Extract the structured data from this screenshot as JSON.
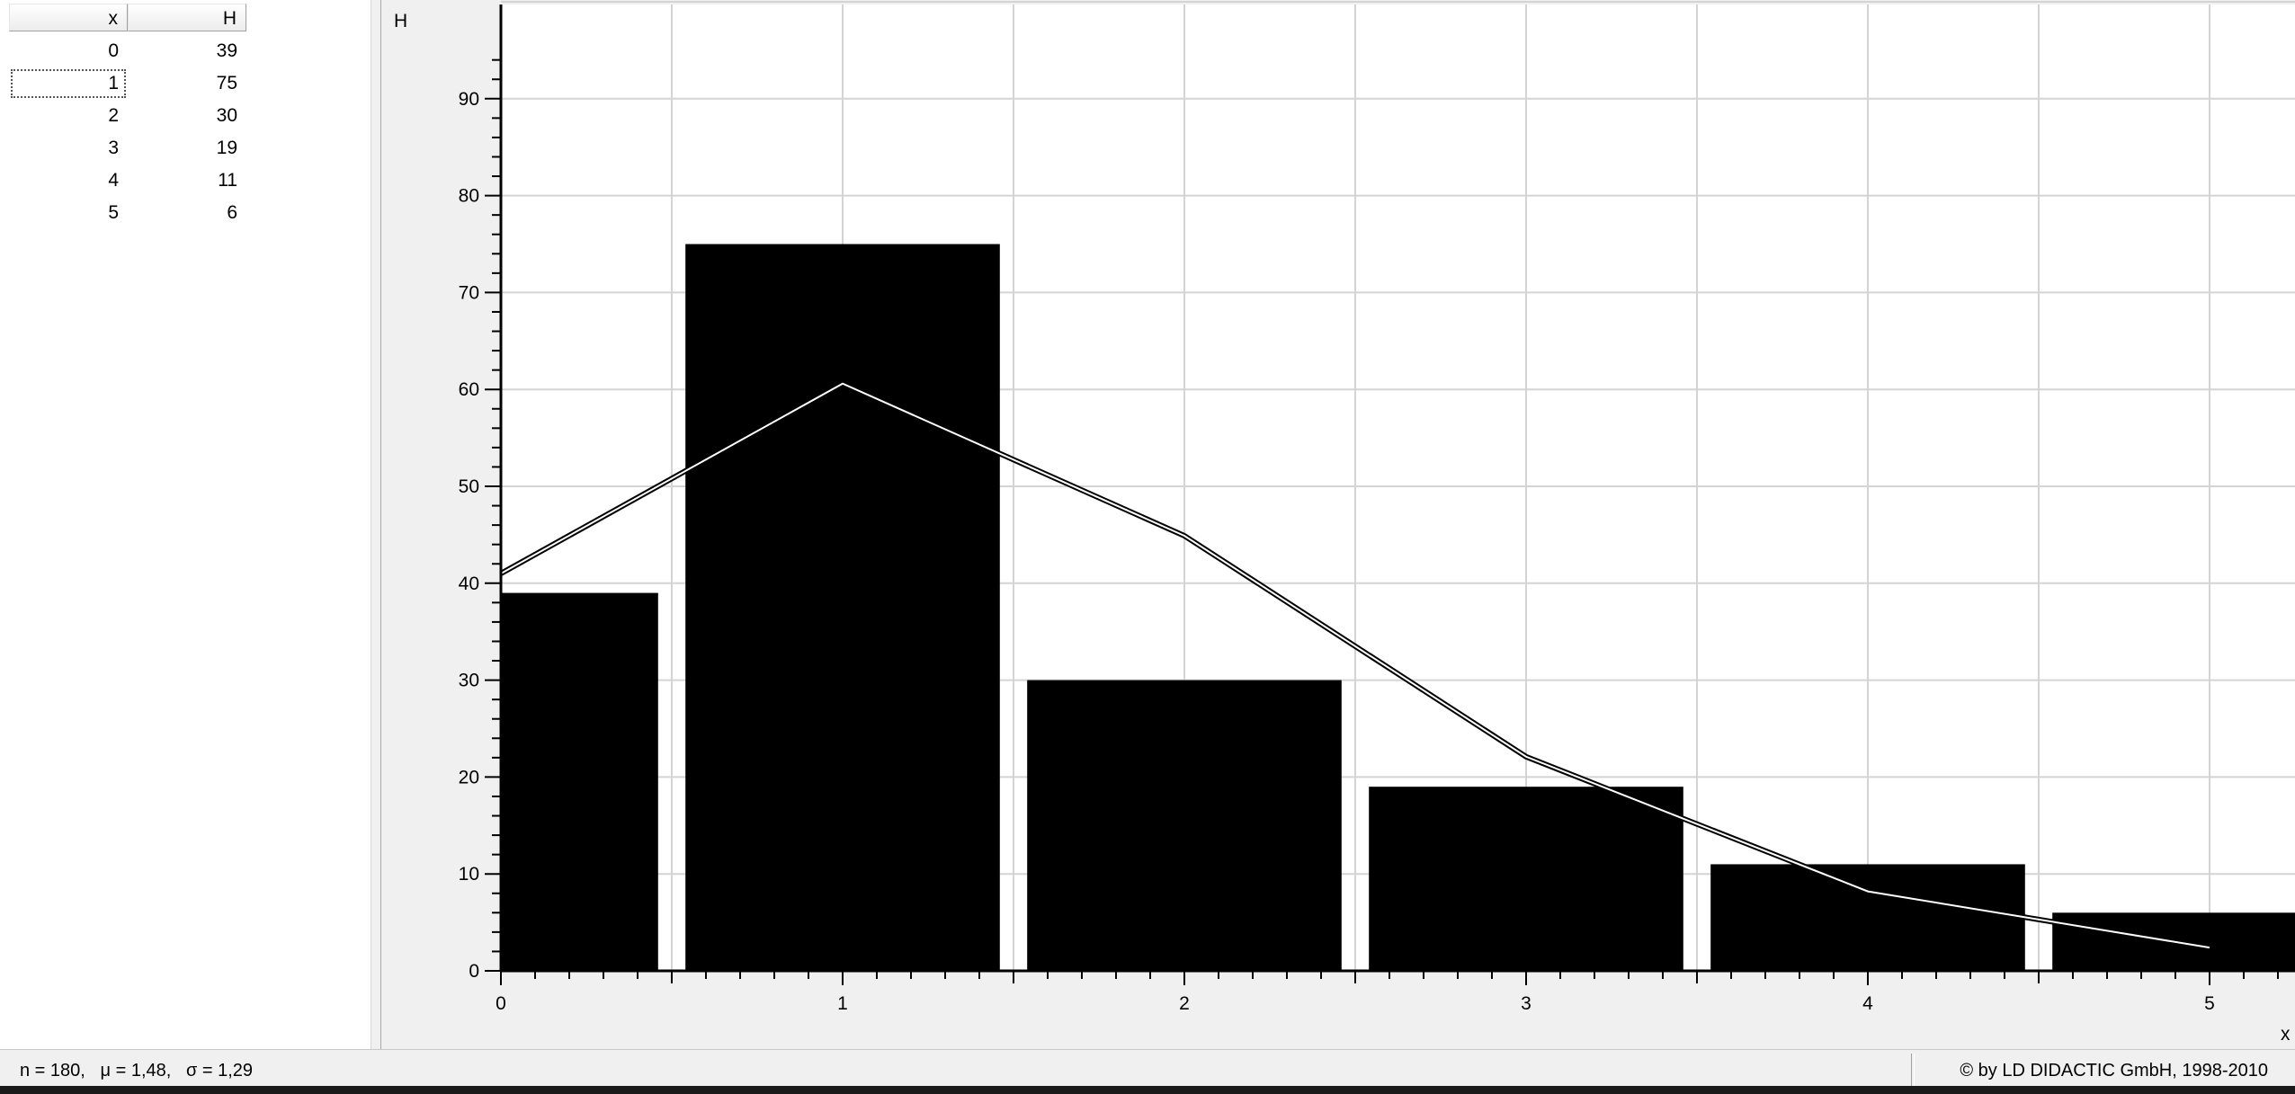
{
  "table": {
    "columns": [
      "x",
      "H"
    ],
    "rows": [
      {
        "x": "0",
        "H": "39"
      },
      {
        "x": "1",
        "H": "75"
      },
      {
        "x": "2",
        "H": "30"
      },
      {
        "x": "3",
        "H": "19"
      },
      {
        "x": "4",
        "H": "11"
      },
      {
        "x": "5",
        "H": "6"
      }
    ],
    "selected_row": 1
  },
  "status": {
    "stats": "n = 180,   μ = 1,48,   σ = 1,29",
    "copyright": "© by LD DIDACTIC GmbH, 1998-2010"
  },
  "chart_data": {
    "type": "bar",
    "xlabel": "x",
    "ylabel": "H",
    "categories": [
      0,
      1,
      2,
      3,
      4,
      5
    ],
    "values": [
      39,
      75,
      30,
      19,
      11,
      6
    ],
    "x_ticks": [
      0,
      1,
      2,
      3,
      4,
      5
    ],
    "y_ticks": [
      0,
      10,
      20,
      30,
      40,
      50,
      60,
      70,
      80,
      90
    ],
    "xlim": [
      0,
      5.25
    ],
    "ylim": [
      0,
      100
    ],
    "grid": true,
    "bar_color": "#000000",
    "curve": {
      "x": [
        0,
        1,
        2,
        3,
        4,
        5
      ],
      "y": [
        41,
        60.6,
        44.9,
        22.1,
        8.2,
        2.4
      ],
      "color": "#ffffff"
    }
  }
}
